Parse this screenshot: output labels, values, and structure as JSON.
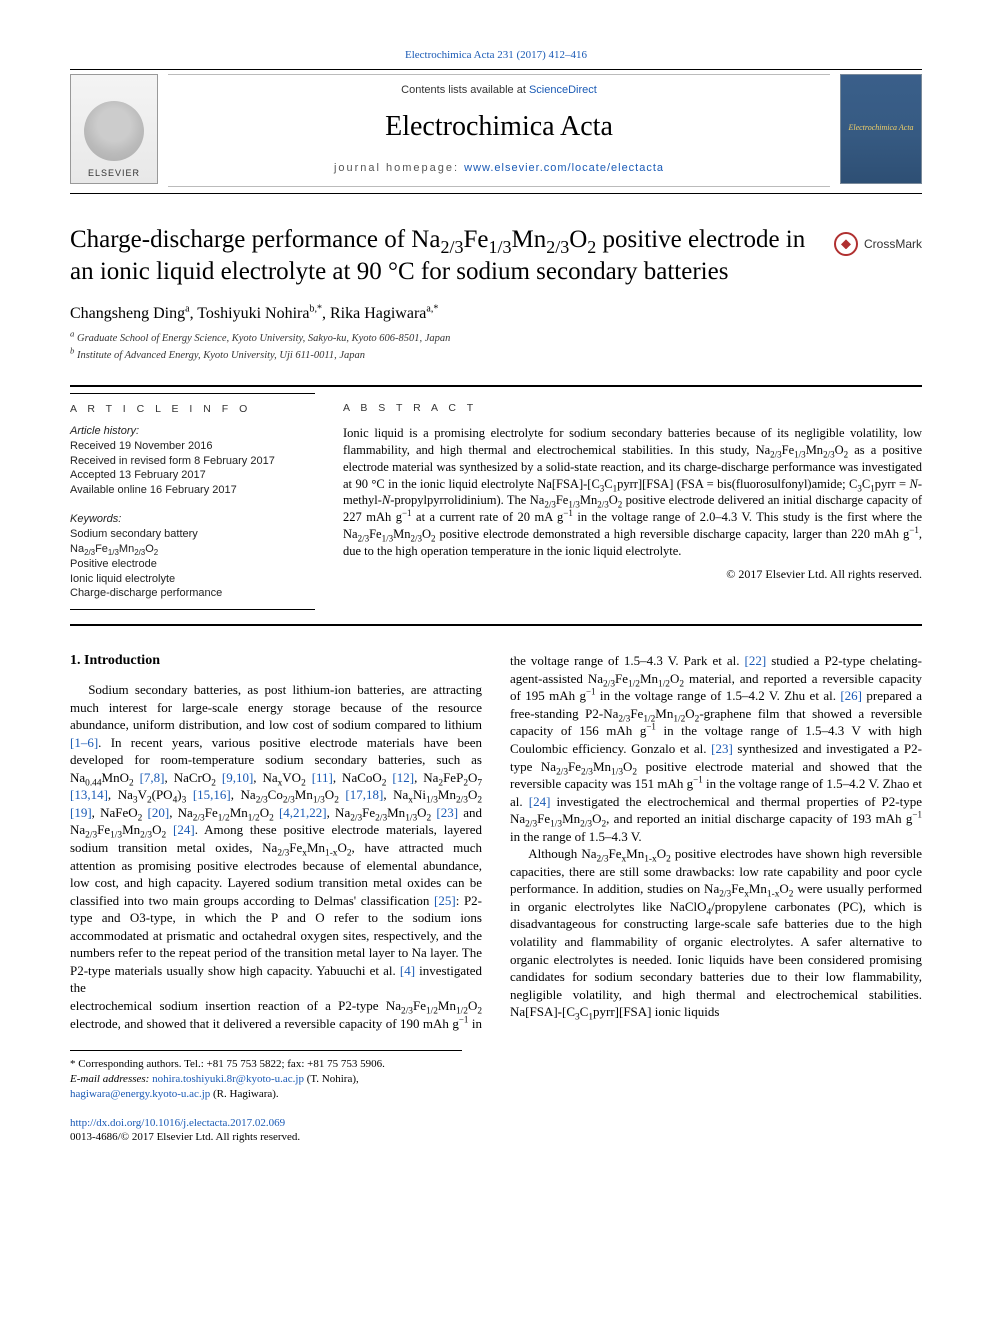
{
  "topLink": "Electrochimica Acta 231 (2017) 412–416",
  "masthead": {
    "contentsLine": {
      "pre": "Contents lists available at ",
      "link": "ScienceDirect"
    },
    "journalTitle": "Electrochimica Acta",
    "homepage": {
      "label": "journal homepage: ",
      "link": "www.elsevier.com/locate/electacta"
    },
    "publisherLogoName": "ELSEVIER",
    "coverLabel": "Electrochimica Acta"
  },
  "title": {
    "text_html": "Charge-discharge performance of Na<sub>2/3</sub>Fe<sub>1/3</sub>Mn<sub>2/3</sub>O<sub>2</sub> positive electrode in an ionic liquid electrolyte at 90 °C for sodium secondary batteries"
  },
  "crossmark": "CrossMark",
  "authors_html": "Changsheng Ding<sup>a</sup>, Toshiyuki Nohira<sup>b,*</sup>, Rika Hagiwara<sup>a,*</sup>",
  "affiliations": [
    {
      "marker": "a",
      "text": "Graduate School of Energy Science, Kyoto University, Sakyo-ku, Kyoto 606-8501, Japan"
    },
    {
      "marker": "b",
      "text": "Institute of Advanced Energy, Kyoto University, Uji 611-0011, Japan"
    }
  ],
  "articleInfo": {
    "heading": "A R T I C L E  I N F O",
    "historyLabel": "Article history:",
    "history": [
      "Received 19 November 2016",
      "Received in revised form 8 February 2017",
      "Accepted 13 February 2017",
      "Available online 16 February 2017"
    ],
    "keywordsLabel": "Keywords:",
    "keywords_html": [
      "Sodium secondary battery",
      "Na<sub>2/3</sub>Fe<sub>1/3</sub>Mn<sub>2/3</sub>O<sub>2</sub>",
      "Positive electrode",
      "Ionic liquid electrolyte",
      "Charge-discharge performance"
    ]
  },
  "abstract": {
    "heading": "A B S T R A C T",
    "body_html": "Ionic liquid is a promising electrolyte for sodium secondary batteries because of its negligible volatility, low flammability, and high thermal and electrochemical stabilities. In this study, Na<sub>2/3</sub>Fe<sub>1/3</sub>Mn<sub>2/3</sub>O<sub>2</sub> as a positive electrode material was synthesized by a solid-state reaction, and its charge-discharge performance was investigated at 90 °C in the ionic liquid electrolyte Na[FSA]-[C<sub>3</sub>C<sub>1</sub>pyrr][FSA] (FSA = bis(fluorosulfonyl)amide; C<sub>3</sub>C<sub>1</sub>pyrr = <i>N</i>-methyl-<i>N</i>-propylpyrrolidinium). The Na<sub>2/3</sub>Fe<sub>1/3</sub>Mn<sub>2/3</sub>O<sub>2</sub> positive electrode delivered an initial discharge capacity of 227 mAh g<sup>−1</sup> at a current rate of 20 mA g<sup>−1</sup> in the voltage range of 2.0–4.3 V. This study is the first where the Na<sub>2/3</sub>Fe<sub>1/3</sub>Mn<sub>2/3</sub>O<sub>2</sub> positive electrode demonstrated a high reversible discharge capacity, larger than 220 mAh g<sup>−1</sup>, due to the high operation temperature in the ionic liquid electrolyte.",
    "copyright": "© 2017 Elsevier Ltd. All rights reserved."
  },
  "sections": {
    "introHeading": "1. Introduction"
  },
  "body": {
    "col1_p1_html": "Sodium secondary batteries, as post lithium-ion batteries, are attracting much interest for large-scale energy storage because of the resource abundance, uniform distribution, and low cost of sodium compared to lithium <a class='ref'>[1–6]</a>. In recent years, various positive electrode materials have been developed for room-temperature sodium secondary batteries, such as Na<sub>0.44</sub>MnO<sub>2</sub> <a class='ref'>[7,8]</a>, NaCrO<sub>2</sub> <a class='ref'>[9,10]</a>, Na<sub>x</sub>VO<sub>2</sub> <a class='ref'>[11]</a>, NaCoO<sub>2</sub> <a class='ref'>[12]</a>, Na<sub>2</sub>FeP<sub>2</sub>O<sub>7</sub> <a class='ref'>[13,14]</a>, Na<sub>3</sub>V<sub>2</sub>(PO<sub>4</sub>)<sub>3</sub> <a class='ref'>[15,16]</a>, Na<sub>2/3</sub>Co<sub>2/3</sub>Mn<sub>1/3</sub>O<sub>2</sub> <a class='ref'>[17,18]</a>, Na<sub>x</sub>Ni<sub>1/3</sub>Mn<sub>2/3</sub>O<sub>2</sub> <a class='ref'>[19]</a>, NaFeO<sub>2</sub> <a class='ref'>[20]</a>, Na<sub>2/3</sub>Fe<sub>1/2</sub>Mn<sub>1/2</sub>O<sub>2</sub> <a class='ref'>[4,21,22]</a>, Na<sub>2/3</sub>Fe<sub>2/3</sub>Mn<sub>1/3</sub>O<sub>2</sub> <a class='ref'>[23]</a> and Na<sub>2/3</sub>Fe<sub>1/3</sub>Mn<sub>2/3</sub>O<sub>2</sub> <a class='ref'>[24]</a>. Among these positive electrode materials, layered sodium transition metal oxides, Na<sub>2/3</sub>Fe<sub>x</sub>Mn<sub>1-x</sub>O<sub>2</sub>, have attracted much attention as promising positive electrodes because of elemental abundance, low cost, and high capacity. Layered sodium transition metal oxides can be classified into two main groups according to Delmas' classification <a class='ref'>[25]</a>: P2-type and O3-type, in which the P and O refer to the sodium ions accommodated at prismatic and octahedral oxygen sites, respectively, and the numbers refer to the repeat period of the transition metal layer to Na layer. The P2-type materials usually show high capacity. Yabuuchi et al. <a class='ref'>[4]</a> investigated the",
    "col2_p1_html": "electrochemical sodium insertion reaction of a P2-type Na<sub>2/3</sub>Fe<sub>1/2</sub>Mn<sub>1/2</sub>O<sub>2</sub> electrode, and showed that it delivered a reversible capacity of 190 mAh g<sup>−1</sup> in the voltage range of 1.5–4.3 V. Park et al. <a class='ref'>[22]</a> studied a P2-type chelating-agent-assisted Na<sub>2/3</sub>Fe<sub>1/2</sub>Mn<sub>1/2</sub>O<sub>2</sub> material, and reported a reversible capacity of 195 mAh g<sup>−1</sup> in the voltage range of 1.5–4.2 V. Zhu et al. <a class='ref'>[26]</a> prepared a free-standing P2-Na<sub>2/3</sub>Fe<sub>1/2</sub>Mn<sub>1/2</sub>O<sub>2</sub>-graphene film that showed a reversible capacity of 156 mAh g<sup>−1</sup> in the voltage range of 1.5–4.3 V with high Coulombic efficiency. Gonzalo et al. <a class='ref'>[23]</a> synthesized and investigated a P2-type Na<sub>2/3</sub>Fe<sub>2/3</sub>Mn<sub>1/3</sub>O<sub>2</sub> positive electrode material and showed that the reversible capacity was 151 mAh g<sup>−1</sup> in the voltage range of 1.5–4.2 V. Zhao et al. <a class='ref'>[24]</a> investigated the electrochemical and thermal properties of P2-type Na<sub>2/3</sub>Fe<sub>1/3</sub>Mn<sub>2/3</sub>O<sub>2</sub>, and reported an initial discharge capacity of 193 mAh g<sup>−1</sup> in the range of 1.5–4.3 V.",
    "col2_p2_html": "Although Na<sub>2/3</sub>Fe<sub>x</sub>Mn<sub>1-x</sub>O<sub>2</sub> positive electrodes have shown high reversible capacities, there are still some drawbacks: low rate capability and poor cycle performance. In addition, studies on Na<sub>2/3</sub>Fe<sub>x</sub>Mn<sub>1-x</sub>O<sub>2</sub> were usually performed in organic electrolytes like NaClO<sub>4</sub>/propylene carbonates (PC), which is disadvantageous for constructing large-scale safe batteries due to the high volatility and flammability of organic electrolytes. A safer alternative to organic electrolytes is needed. Ionic liquids have been considered promising candidates for sodium secondary batteries due to their low flammability, negligible volatility, and high thermal and electrochemical stabilities. Na[FSA]-[C<sub>3</sub>C<sub>1</sub>pyrr][FSA] ionic liquids"
  },
  "footnotes": {
    "corresponding": "* Corresponding authors. Tel.: +81 75 753 5822; fax: +81 75 753 5906.",
    "emailsLabel": "E-mail addresses:",
    "emails": [
      {
        "addr": "nohira.toshiyuki.8r@kyoto-u.ac.jp",
        "who": "(T. Nohira)"
      },
      {
        "addr": "hagiwara@energy.kyoto-u.ac.jp",
        "who": "(R. Hagiwara)"
      }
    ]
  },
  "footer": {
    "doi": "http://dx.doi.org/10.1016/j.electacta.2017.02.069",
    "issn": "0013-4686/© 2017 Elsevier Ltd. All rights reserved."
  },
  "colors": {
    "link": "#1a5ab5",
    "text": "#000000",
    "bg": "#ffffff",
    "rule": "#000000"
  },
  "typography": {
    "body_pt": 10,
    "title_pt": 19,
    "journal_pt": 22,
    "abstract_pt": 9.5,
    "font_family": "Times New Roman / serif"
  }
}
